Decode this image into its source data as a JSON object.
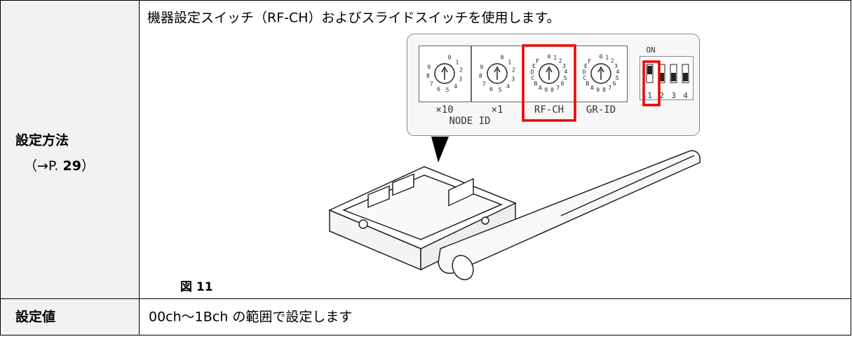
{
  "left_column": {
    "method_label": "設定方法",
    "page_ref": {
      "prefix": "（→P. ",
      "page": "29",
      "suffix": "）"
    },
    "value_label": "設定値"
  },
  "method": {
    "text": "機器設定スイッチ（RF-CH）およびスライドスイッチを使用します。",
    "figure": {
      "dials": [
        {
          "label": "×10",
          "digits": [
            "0",
            "1",
            "2",
            "3",
            "4",
            "5",
            "6",
            "7",
            "8",
            "9"
          ]
        },
        {
          "label": "×1",
          "digits": [
            "0",
            "1",
            "2",
            "3",
            "4",
            "5",
            "6",
            "7",
            "8",
            "9"
          ]
        },
        {
          "label": "RF-CH",
          "digits": [
            "0",
            "1",
            "2",
            "3",
            "4",
            "5",
            "6",
            "7",
            "8",
            "9",
            "A",
            "B",
            "C",
            "D",
            "E",
            "F"
          ]
        },
        {
          "label": "GR-ID",
          "digits": [
            "0",
            "1",
            "2",
            "3",
            "4",
            "5",
            "6",
            "7",
            "8",
            "9",
            "A",
            "B",
            "C",
            "D",
            "E",
            "F"
          ]
        }
      ],
      "group_label": "NODE ID",
      "dip": {
        "label": "ON",
        "positions": [
          "1",
          "2",
          "3",
          "4"
        ]
      }
    },
    "caption": "図 11"
  },
  "value": {
    "text": "00ch～1Bch の範囲で設定します"
  }
}
